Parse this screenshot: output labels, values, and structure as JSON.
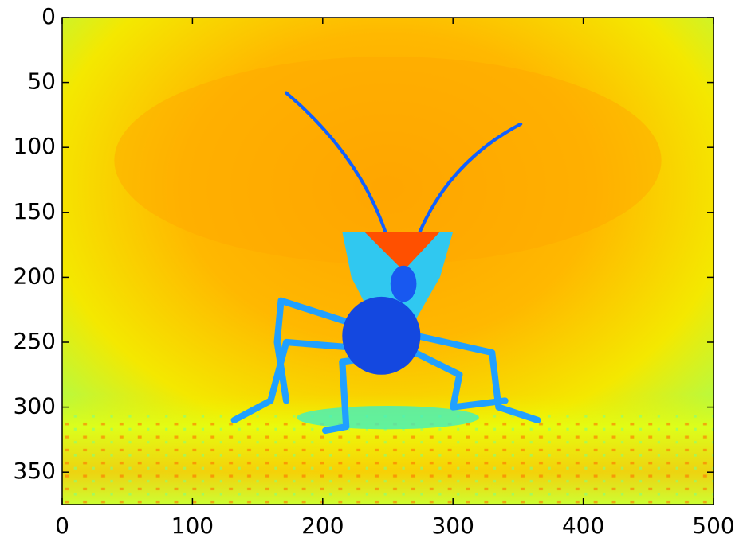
{
  "chart_data": {
    "type": "image",
    "xlim": [
      0,
      500
    ],
    "ylim": [
      375,
      0
    ],
    "xticks": [
      0,
      100,
      200,
      300,
      400,
      500
    ],
    "yticks": [
      0,
      50,
      100,
      150,
      200,
      250,
      300,
      350
    ],
    "colormap": "jet"
  }
}
